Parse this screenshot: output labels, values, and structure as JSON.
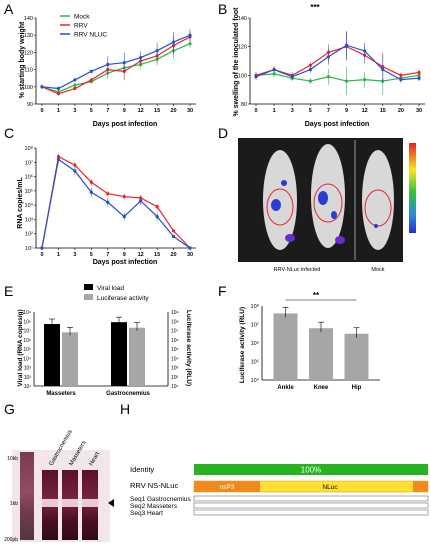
{
  "panel_labels": {
    "A": "A",
    "B": "B",
    "C": "C",
    "D": "D",
    "E": "E",
    "F": "F",
    "G": "G",
    "H": "H"
  },
  "colors": {
    "mock": "#2cb34a",
    "rrv": "#e8262b",
    "nluc": "#2451c7",
    "identity": "#27b31f",
    "nsp3": "#f08a1c",
    "nluc_bar": "#ffe033"
  },
  "chart_data": [
    {
      "panel": "A",
      "type": "line",
      "x_ticks": [
        "0",
        "1",
        "3",
        "5",
        "7",
        "9",
        "12",
        "15",
        "20",
        "30"
      ],
      "ylabel": "% starting body weight",
      "xlabel": "Days post infection",
      "ylim": [
        90,
        140
      ],
      "y_ticks": [
        "90",
        "100",
        "110",
        "120",
        "130",
        "140"
      ],
      "legend_position": "top-left",
      "series": [
        {
          "name": "Mock",
          "color": "#2cb34a",
          "values": [
            100,
            97,
            101,
            103,
            108,
            111,
            113,
            116,
            121,
            125
          ]
        },
        {
          "name": "RRV",
          "color": "#e8262b",
          "values": [
            100,
            96,
            99,
            104,
            110,
            109,
            115,
            118,
            124,
            129
          ]
        },
        {
          "name": "RRV NLUC",
          "color": "#2451c7",
          "values": [
            100,
            99,
            104,
            109,
            113,
            114,
            117,
            121,
            126,
            130
          ]
        }
      ]
    },
    {
      "panel": "B",
      "type": "line",
      "x_ticks": [
        "0",
        "1",
        "3",
        "5",
        "7",
        "9",
        "12",
        "15",
        "20",
        "30"
      ],
      "ylabel": "% swelling of the inoculated foot",
      "xlabel": "Days post infection",
      "ylim": [
        80,
        140
      ],
      "y_ticks": [
        "80",
        "100",
        "120",
        "140"
      ],
      "annotation": "***",
      "series": [
        {
          "name": "Mock",
          "color": "#2cb34a",
          "values": [
            100,
            101,
            98,
            96,
            99,
            96,
            97,
            96,
            98,
            100
          ]
        },
        {
          "name": "RRV",
          "color": "#e8262b",
          "values": [
            100,
            104,
            100,
            107,
            116,
            120,
            114,
            106,
            100,
            102
          ]
        },
        {
          "name": "RRV NLUC",
          "color": "#2451c7",
          "values": [
            99,
            104,
            99,
            104,
            113,
            121,
            117,
            104,
            97,
            98
          ]
        }
      ]
    },
    {
      "panel": "C",
      "type": "line",
      "x_ticks": [
        "0",
        "1",
        "3",
        "5",
        "7",
        "9",
        "12",
        "15",
        "20",
        "30"
      ],
      "ylabel": "RNA copies/mL",
      "xlabel": "Days post infection",
      "y_ticks": [
        "10¹",
        "10²",
        "10³",
        "10⁴",
        "10⁵",
        "10⁶",
        "10⁷",
        "10⁸"
      ],
      "y_log": true,
      "ylim_exp": [
        1,
        8
      ],
      "series": [
        {
          "name": "RRV",
          "color": "#e8262b",
          "log_values": [
            1,
            7.4,
            6.8,
            5.6,
            4.8,
            4.6,
            4.5,
            3.9,
            2.2,
            1.0
          ]
        },
        {
          "name": "RRV NLUC",
          "color": "#2451c7",
          "log_values": [
            1,
            7.2,
            6.4,
            4.9,
            4.2,
            3.2,
            4.3,
            3.2,
            1.8,
            1.0
          ]
        }
      ]
    },
    {
      "panel": "E",
      "type": "bar",
      "categories": [
        "Masseters",
        "Gastrocnemius"
      ],
      "ylabel_left": "Viral load (RNA copies/g)",
      "ylabel_right": "Luciferase activity (RLU)",
      "y_ticks": [
        "10¹",
        "10²",
        "10³",
        "10⁴",
        "10⁵",
        "10⁶",
        "10⁷",
        "10⁸",
        "10⁹"
      ],
      "y_log": true,
      "ylim_exp": [
        1,
        9
      ],
      "series": [
        {
          "name": "Viral load",
          "color": "#000000",
          "log_values": [
            7.7,
            7.9
          ]
        },
        {
          "name": "Luciferase activity",
          "color": "#a6a6a6",
          "log_values": [
            6.8,
            7.3
          ]
        }
      ]
    },
    {
      "panel": "F",
      "type": "bar",
      "categories": [
        "Ankle",
        "Knee",
        "Hip"
      ],
      "ylabel": "Luciferase activity (RLU)",
      "y_ticks": [
        "10⁴",
        "10⁵",
        "10⁶",
        "10⁷",
        "10⁸"
      ],
      "y_log": true,
      "ylim_exp": [
        4,
        8
      ],
      "annotation": "**",
      "values_log": [
        7.6,
        6.8,
        6.5
      ],
      "colors": [
        "#a6a6a6",
        "#a6a6a6",
        "#a6a6a6"
      ]
    }
  ],
  "panel_d": {
    "caption_left": "RRV-NLuc infected",
    "caption_right": "Mock"
  },
  "panel_g": {
    "lane_labels": [
      "Gastrocnemius",
      "Masseters",
      "Heart"
    ],
    "markers": [
      "10kb",
      "1kb",
      "200pb"
    ]
  },
  "panel_h": {
    "identity_label": "Identity",
    "identity_value": "100%",
    "construct": "RRV NS-NLuc",
    "nsp3": "nsP3",
    "nluc": "NLuc",
    "seqs": [
      "Seq1 Gastrocnemius",
      "Seq2 Masseters",
      "Seq3 Heart"
    ]
  }
}
